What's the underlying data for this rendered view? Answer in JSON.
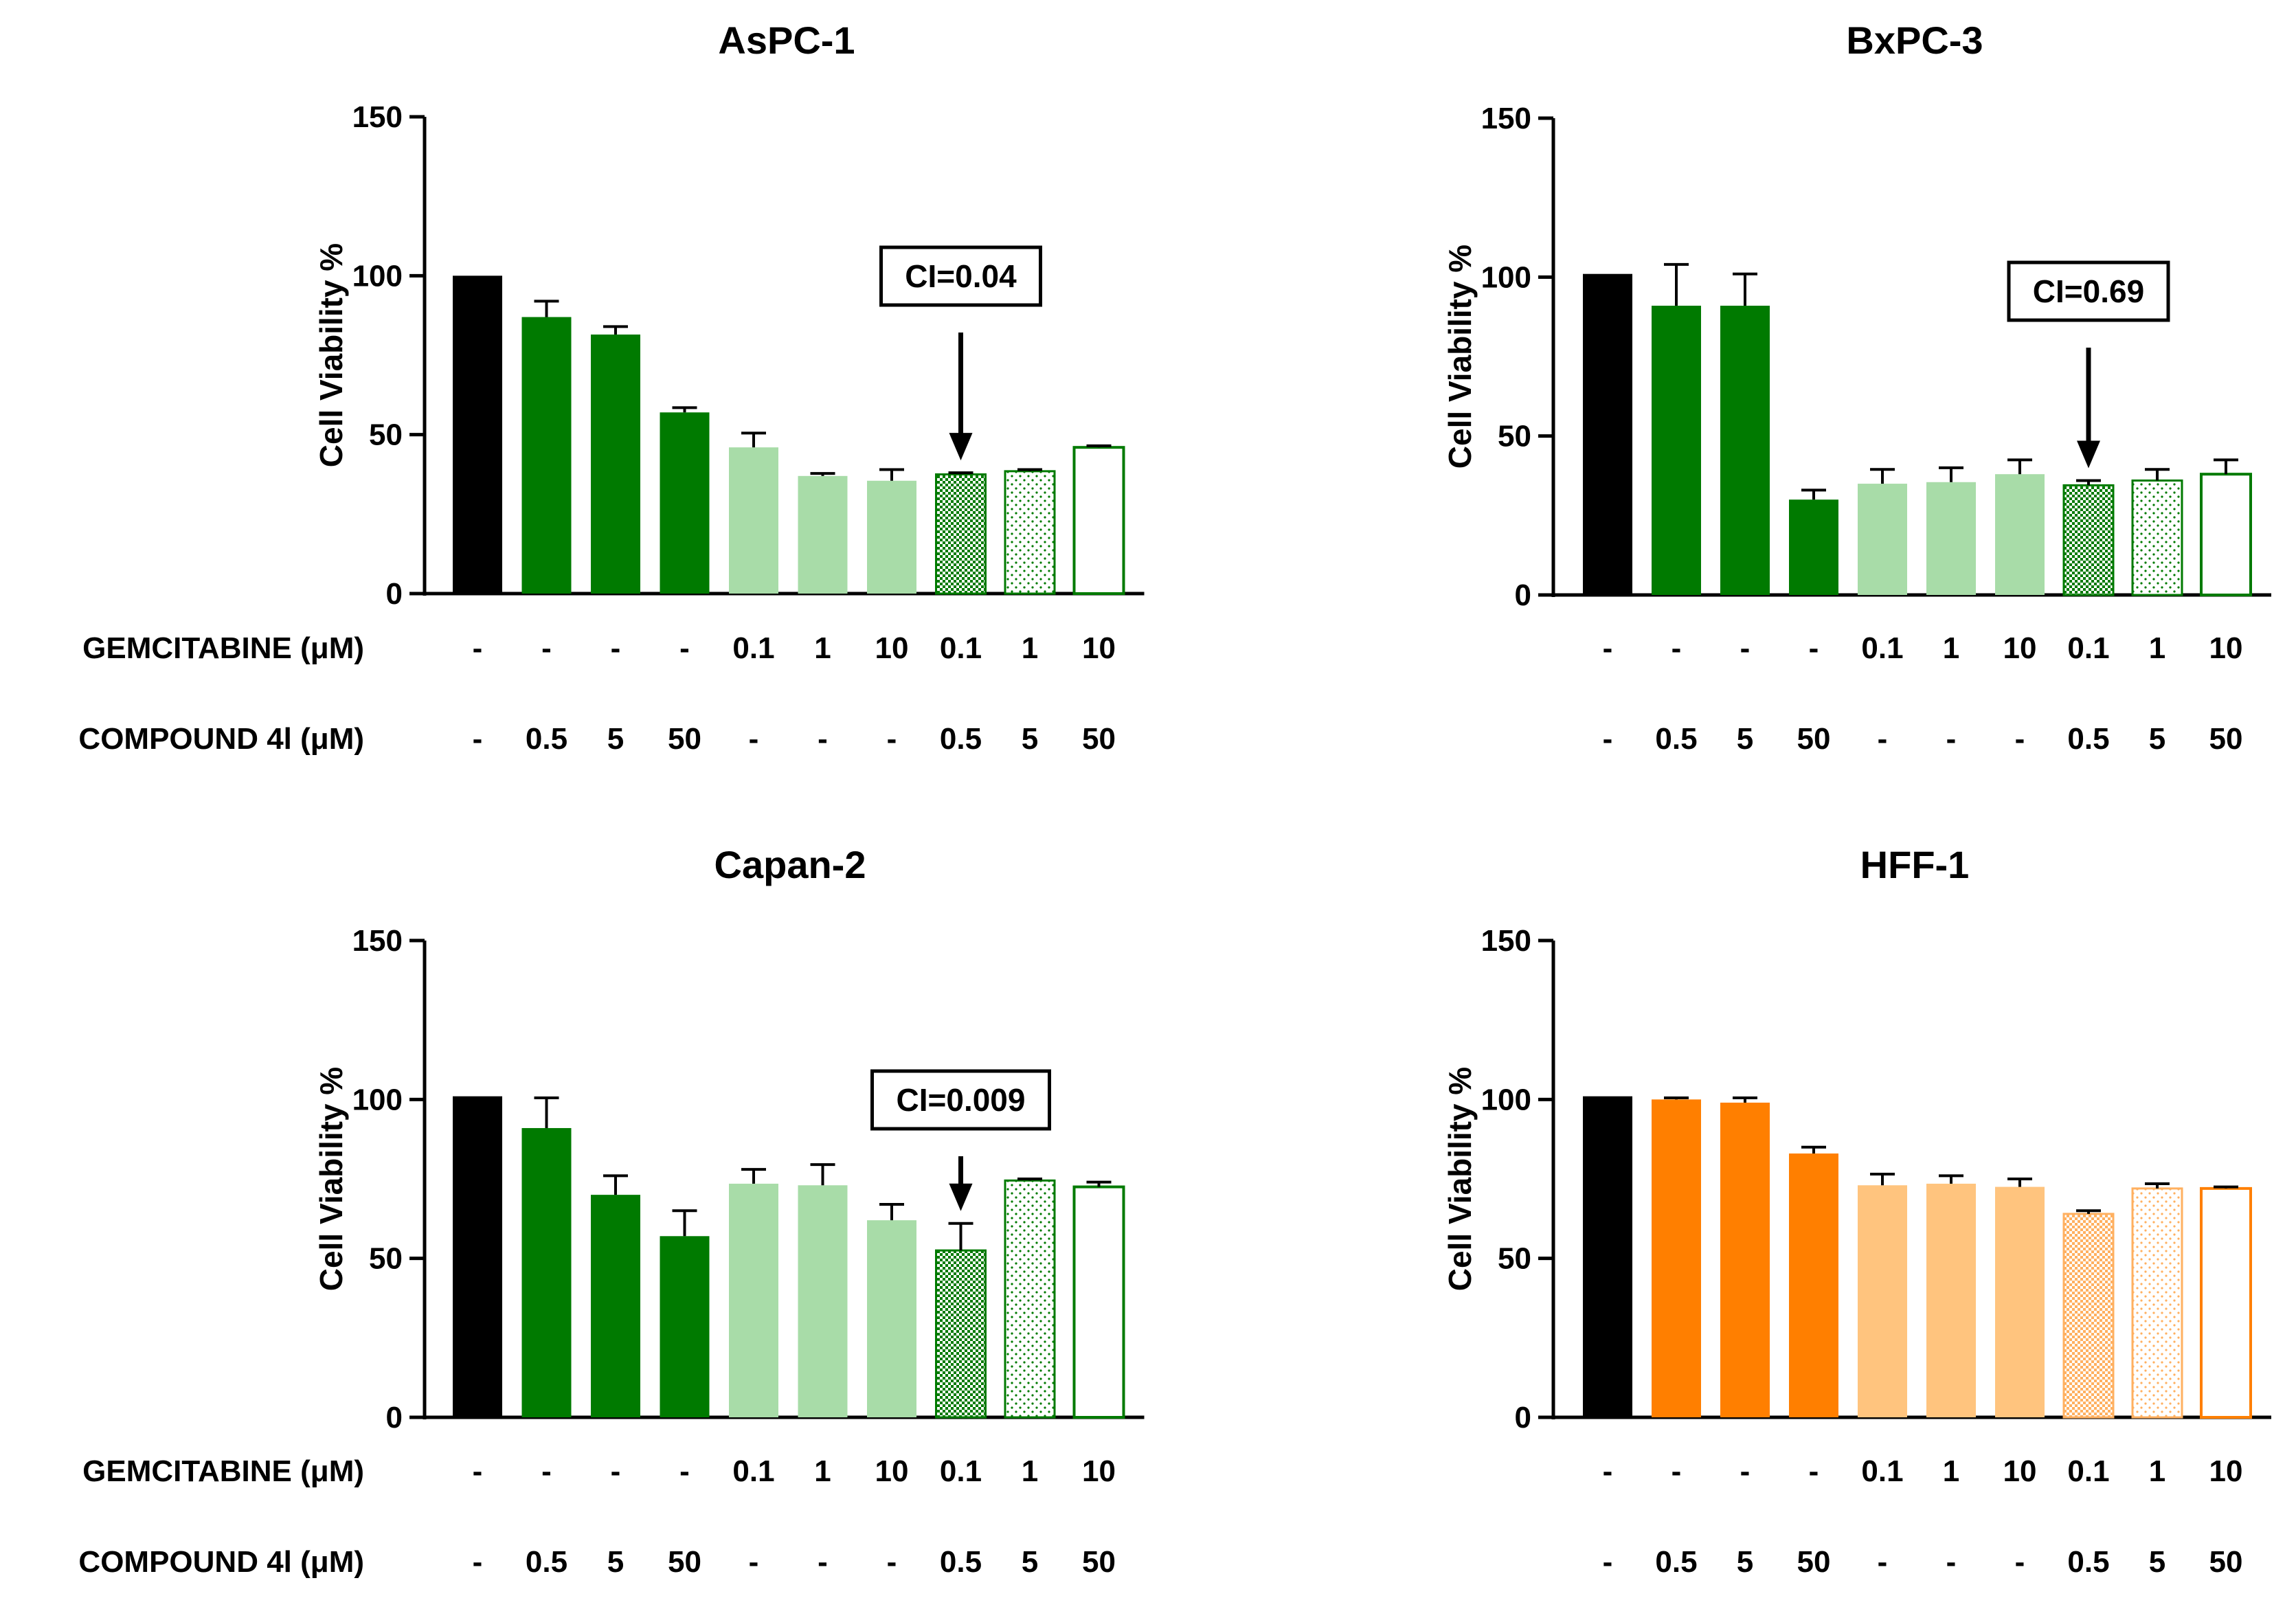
{
  "colors": {
    "control": "#000000",
    "green_dark": "#007a00",
    "green_light": "#a8dca8",
    "orange_dark": "#ff7f00",
    "orange_light": "#ffc47e",
    "white": "#ffffff"
  },
  "row_labels": {
    "gemcitabine": "GEMCITABINE (μM)",
    "compound": "COMPOUND 4l (μM)"
  },
  "conditions": {
    "gemcitabine": [
      "-",
      "-",
      "-",
      "-",
      "0.1",
      "1",
      "10",
      "0.1",
      "1",
      "10"
    ],
    "compound": [
      "-",
      "0.5",
      "5",
      "50",
      "-",
      "-",
      "-",
      "0.5",
      "5",
      "50"
    ]
  },
  "chart_data": [
    {
      "type": "bar",
      "title": "AsPC-1",
      "ylabel": "Cell Viability %",
      "ylim": [
        0,
        150
      ],
      "yticks": [
        0,
        50,
        100,
        150
      ],
      "palette": "green",
      "values": [
        100,
        87,
        81.5,
        57,
        46,
        37,
        35.5,
        37.5,
        38.5,
        46
      ],
      "errors": [
        0,
        5,
        2.5,
        1.5,
        4.5,
        0.8,
        3.5,
        0.5,
        0.5,
        0.5
      ],
      "annotation": {
        "label": "CI=0.04",
        "bar_index": 7
      }
    },
    {
      "type": "bar",
      "title": "BxPC-3",
      "ylabel": "Cell Viability %",
      "ylim": [
        0,
        150
      ],
      "yticks": [
        0,
        50,
        100,
        150
      ],
      "palette": "green",
      "values": [
        101,
        91,
        91,
        30,
        35,
        35.5,
        38,
        34.5,
        36,
        38
      ],
      "errors": [
        0,
        13,
        10,
        3,
        4.5,
        4.5,
        4.5,
        1.5,
        3.5,
        4.5
      ],
      "annotation": {
        "label": "CI=0.69",
        "bar_index": 7
      }
    },
    {
      "type": "bar",
      "title": "Capan-2",
      "ylabel": "Cell Viability %",
      "ylim": [
        0,
        150
      ],
      "yticks": [
        0,
        50,
        100,
        150
      ],
      "palette": "green",
      "values": [
        101,
        91,
        70,
        57,
        73.5,
        73,
        62,
        52.5,
        74.5,
        72.5
      ],
      "errors": [
        0,
        9.5,
        6,
        8,
        4.5,
        6.5,
        5,
        8.5,
        0.5,
        1.5
      ],
      "annotation": {
        "label": "CI=0.009",
        "bar_index": 7
      }
    },
    {
      "type": "bar",
      "title": "HFF-1",
      "ylabel": "Cell Viability %",
      "ylim": [
        0,
        150
      ],
      "yticks": [
        0,
        50,
        100,
        150
      ],
      "palette": "orange",
      "values": [
        101,
        100,
        99,
        83,
        73,
        73.5,
        72.5,
        64,
        72,
        72
      ],
      "errors": [
        0,
        0.5,
        1.5,
        2,
        3.5,
        2.5,
        2.5,
        1,
        1.5,
        0.5
      ],
      "annotation": null
    }
  ]
}
